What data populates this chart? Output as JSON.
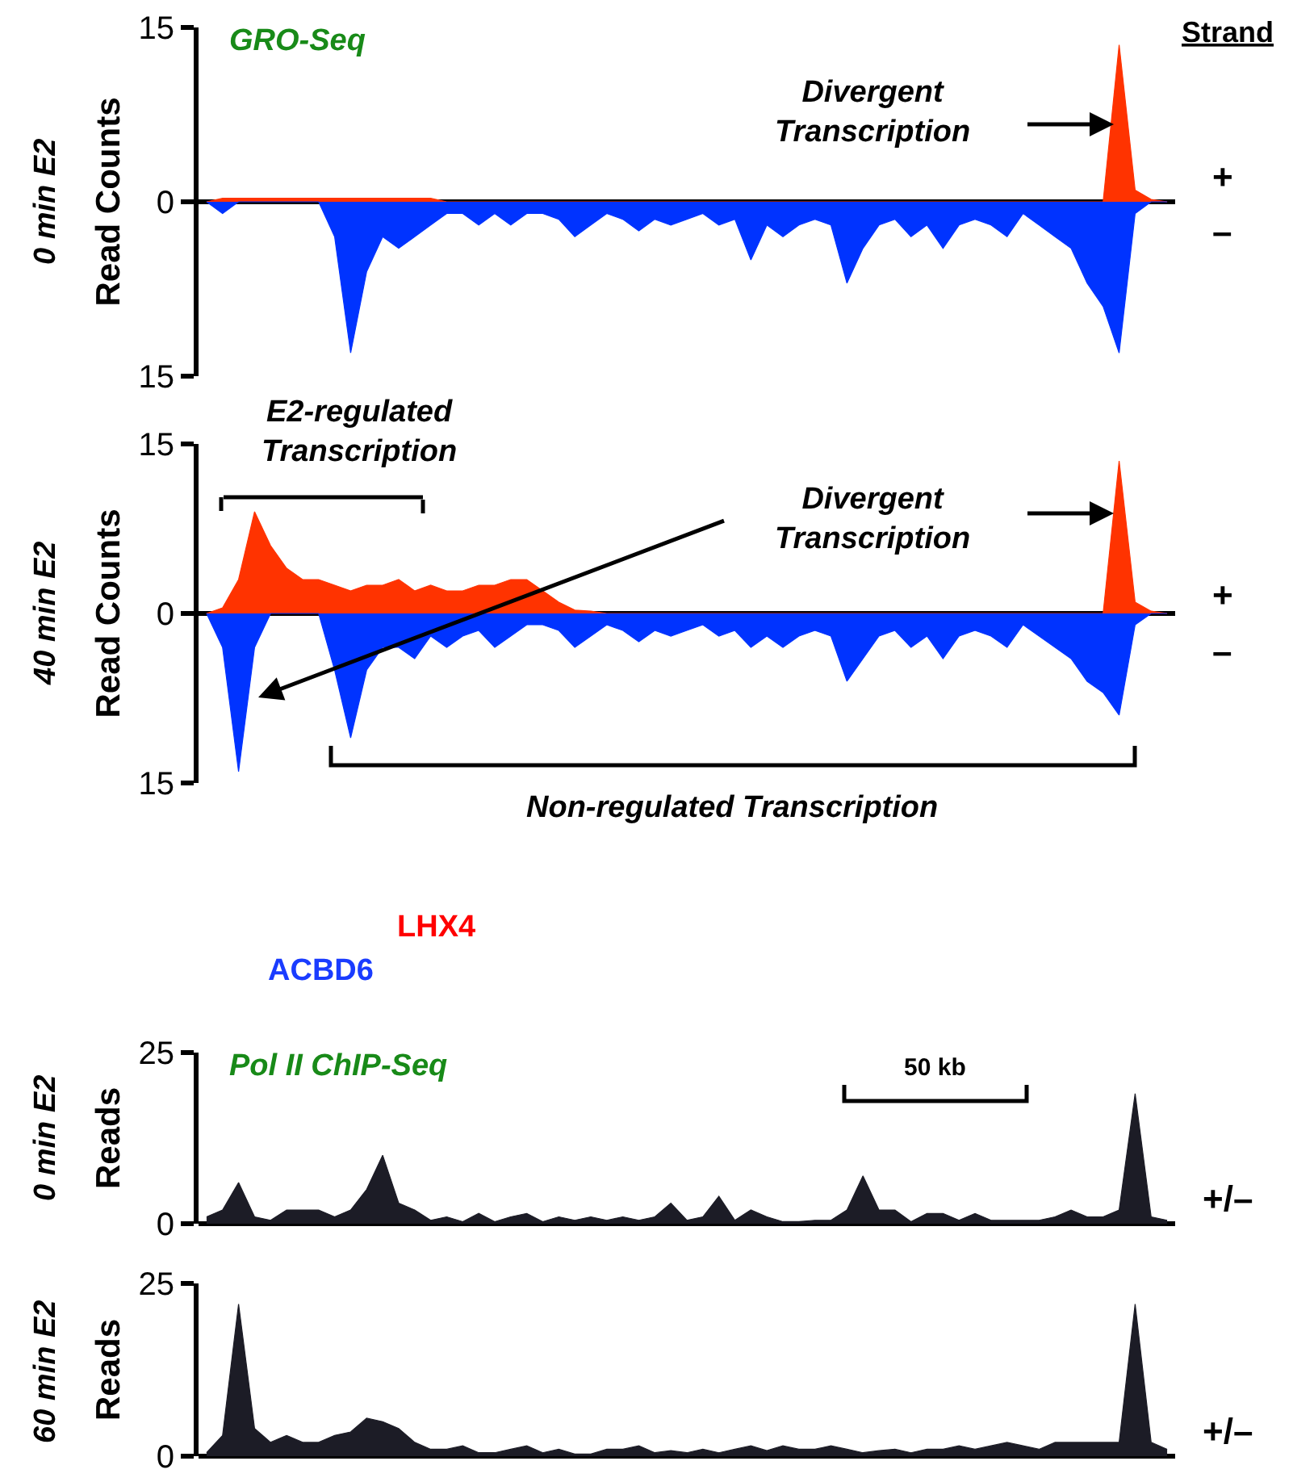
{
  "chart_data": [
    {
      "type": "area",
      "title": "GRO-Seq",
      "ylabel": "Read Counts",
      "categories": [
        null,
        null,
        null,
        null,
        null,
        null,
        null,
        null,
        null,
        null,
        null,
        null,
        null,
        null,
        null,
        null,
        null,
        null,
        null,
        null,
        null,
        null,
        null,
        null,
        null,
        null,
        null,
        null,
        null,
        null,
        null,
        null,
        null,
        null,
        null,
        null,
        null,
        null,
        null,
        null,
        null,
        null,
        null,
        null,
        null,
        null,
        null,
        null,
        null,
        null,
        null,
        null,
        null,
        null,
        null,
        null,
        null,
        null,
        null,
        null,
        null
      ],
      "series": [
        {
          "color": "#ff3300",
          "values": [
            0,
            0.3,
            0.3,
            0.3,
            0.3,
            0.3,
            0.3,
            0.3,
            0.3,
            0.3,
            0.3,
            0.3,
            0.3,
            0.3,
            0.3,
            0,
            0,
            0,
            0,
            0,
            0,
            0,
            0,
            0,
            0,
            0,
            0,
            0,
            0,
            0,
            0,
            0,
            0,
            0,
            0,
            0,
            0,
            0,
            0,
            0,
            0,
            0,
            0,
            0,
            0,
            0,
            0,
            0,
            0,
            0,
            0,
            0,
            0,
            0,
            0,
            0,
            0,
            13.5,
            1,
            0.2,
            0
          ]
        },
        {
          "color": "#0033ff",
          "values": [
            0,
            -1,
            0,
            0,
            0,
            0,
            0,
            0,
            -3,
            -13,
            -6,
            -3,
            -4,
            -3,
            -2,
            -1,
            -1,
            -2,
            -1,
            -2,
            -1,
            -1,
            -1.5,
            -3,
            -2,
            -1,
            -1.5,
            -2.5,
            -1.5,
            -2,
            -1.5,
            -1,
            -2,
            -1.5,
            -5,
            -2,
            -3,
            -2,
            -1.5,
            -2,
            -7,
            -4,
            -2,
            -1.5,
            -3,
            -2,
            -4,
            -2,
            -1.5,
            -2,
            -3,
            -1,
            -2,
            -3,
            -4,
            -7,
            -9,
            -13,
            -1,
            0,
            0
          ]
        }
      ],
      "ylim": [
        -15,
        15
      ],
      "yticks": [
        {
          "value": -15,
          "label": "15"
        },
        0,
        15
      ],
      "tick_labels": "y",
      "annotations": [
        "0 min E2",
        "Divergent\nTranscription",
        "Strand",
        "+",
        "–"
      ]
    },
    {
      "type": "area",
      "ylabel": "Read Counts",
      "categories": [
        null,
        null,
        null,
        null,
        null,
        null,
        null,
        null,
        null,
        null,
        null,
        null,
        null,
        null,
        null,
        null,
        null,
        null,
        null,
        null,
        null,
        null,
        null,
        null,
        null,
        null,
        null,
        null,
        null,
        null,
        null,
        null,
        null,
        null,
        null,
        null,
        null,
        null,
        null,
        null,
        null,
        null,
        null,
        null,
        null,
        null,
        null,
        null,
        null,
        null,
        null,
        null,
        null,
        null,
        null,
        null,
        null,
        null,
        null,
        null,
        null
      ],
      "series": [
        {
          "color": "#ff3300",
          "values": [
            0,
            0.5,
            3,
            9,
            6,
            4,
            3,
            3,
            2.5,
            2,
            2.5,
            2.5,
            3,
            2,
            2.5,
            2,
            2,
            2.5,
            2.5,
            3,
            3,
            2,
            1,
            0.3,
            0.2,
            0,
            0,
            0,
            0,
            0,
            0,
            0,
            0,
            0,
            0,
            0,
            0,
            0,
            0,
            0,
            0,
            0,
            0,
            0,
            0,
            0,
            0,
            0,
            0,
            0,
            0,
            0,
            0,
            0,
            0,
            0,
            0,
            13.5,
            1,
            0.2,
            0
          ]
        },
        {
          "color": "#0033ff",
          "values": [
            0,
            -3,
            -14,
            -3,
            0,
            0,
            0,
            0,
            -5,
            -11,
            -5,
            -3,
            -3,
            -4,
            -2,
            -3,
            -2,
            -1.5,
            -3,
            -2,
            -1,
            -1,
            -1.5,
            -3,
            -2,
            -1,
            -1.5,
            -2.5,
            -1.5,
            -2,
            -1.5,
            -1,
            -2,
            -1.5,
            -3,
            -2,
            -3,
            -2,
            -1.5,
            -2,
            -6,
            -4,
            -2,
            -1.5,
            -3,
            -2,
            -4,
            -2,
            -1.5,
            -2,
            -3,
            -1,
            -2,
            -3,
            -4,
            -6,
            -7,
            -9,
            -1,
            0,
            0
          ]
        }
      ],
      "ylim": [
        -15,
        15
      ],
      "yticks": [
        {
          "value": -15,
          "label": "15"
        },
        0,
        15
      ],
      "tick_labels": "y",
      "annotations": [
        "40 min E2",
        "E2-regulated\nTranscription",
        "Divergent\nTranscription",
        "Non-regulated Transcription",
        "+",
        "–"
      ]
    },
    {
      "type": "area",
      "title": "Pol II ChIP-Seq",
      "ylabel": "Reads",
      "categories": [
        null,
        null,
        null,
        null,
        null,
        null,
        null,
        null,
        null,
        null,
        null,
        null,
        null,
        null,
        null,
        null,
        null,
        null,
        null,
        null,
        null,
        null,
        null,
        null,
        null,
        null,
        null,
        null,
        null,
        null,
        null,
        null,
        null,
        null,
        null,
        null,
        null,
        null,
        null,
        null,
        null,
        null,
        null,
        null,
        null,
        null,
        null,
        null,
        null,
        null,
        null,
        null,
        null,
        null,
        null,
        null,
        null,
        null,
        null,
        null,
        null
      ],
      "series": [
        {
          "color": "#1c1c26",
          "values": [
            1,
            2,
            6,
            1,
            0.5,
            2,
            2,
            2,
            1,
            2,
            5,
            10,
            3,
            2,
            0.5,
            1,
            0.3,
            1.5,
            0.3,
            1,
            1.5,
            0.3,
            1,
            0.5,
            1,
            0.5,
            1,
            0.5,
            1,
            3,
            0.5,
            1,
            4,
            0.5,
            2,
            1,
            0.3,
            0.3,
            0.5,
            0.5,
            2,
            7,
            2,
            2,
            0.3,
            1.5,
            1.5,
            0.5,
            1.5,
            0.5,
            0.5,
            0.5,
            0.5,
            1,
            2,
            1,
            1,
            2,
            19,
            1,
            0.5
          ]
        }
      ],
      "ylim": [
        0,
        25
      ],
      "yticks": [
        0,
        25
      ],
      "tick_labels": "y",
      "annotations": [
        "LHX4",
        "ACBD6",
        "0 min E2",
        "50 kb",
        "+/–"
      ]
    },
    {
      "type": "area",
      "ylabel": "Reads",
      "categories": [
        null,
        null,
        null,
        null,
        null,
        null,
        null,
        null,
        null,
        null,
        null,
        null,
        null,
        null,
        null,
        null,
        null,
        null,
        null,
        null,
        null,
        null,
        null,
        null,
        null,
        null,
        null,
        null,
        null,
        null,
        null,
        null,
        null,
        null,
        null,
        null,
        null,
        null,
        null,
        null,
        null,
        null,
        null,
        null,
        null,
        null,
        null,
        null,
        null,
        null,
        null,
        null,
        null,
        null,
        null,
        null,
        null,
        null,
        null,
        null,
        null
      ],
      "series": [
        {
          "color": "#1c1c26",
          "values": [
            0.5,
            3,
            22,
            4,
            2,
            3,
            2,
            2,
            3,
            3.5,
            5.5,
            5,
            4,
            2,
            1,
            1,
            1.5,
            0.5,
            0.5,
            1,
            1.5,
            0.5,
            1,
            0.3,
            0.3,
            1,
            1,
            1.5,
            0.5,
            0.8,
            0.5,
            1,
            0.5,
            1,
            1.5,
            0.8,
            1.5,
            1,
            1,
            1.5,
            1,
            0.5,
            0.8,
            1,
            0.5,
            1,
            1,
            1.5,
            1,
            1.5,
            2,
            1.5,
            1,
            2,
            2,
            2,
            2,
            2,
            22,
            2,
            1
          ]
        }
      ],
      "ylim": [
        0,
        25
      ],
      "yticks": [
        0,
        25
      ],
      "tick_labels": "y",
      "annotations": [
        "60 min E2",
        "+/–"
      ]
    }
  ]
}
